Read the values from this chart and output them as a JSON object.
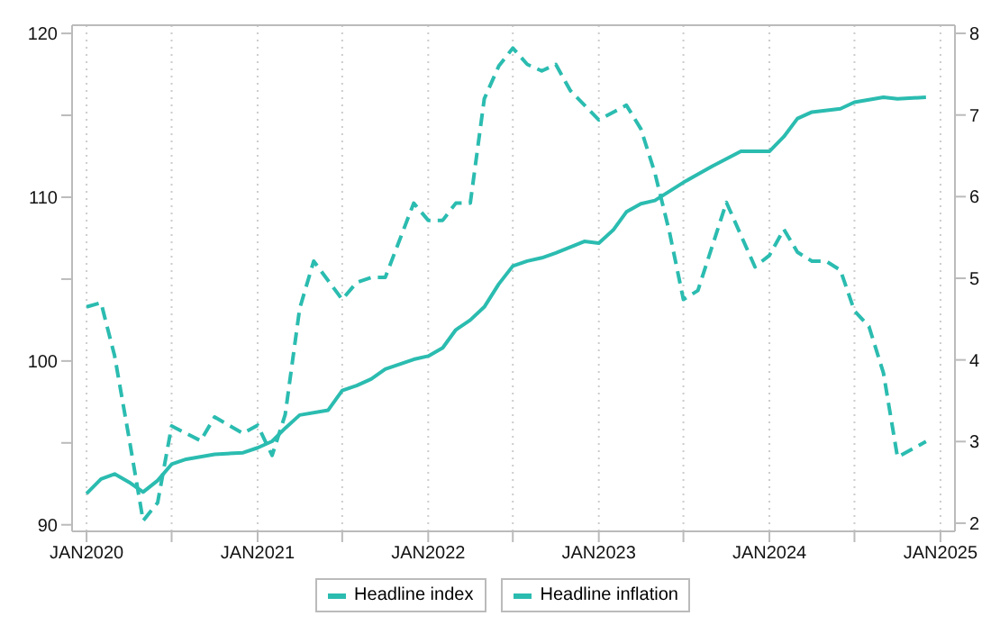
{
  "chart_data": {
    "type": "line",
    "legend": "bottom",
    "grid": true,
    "marker": "none",
    "xlim": [
      "2019-12",
      "2025-02"
    ],
    "xticks": [
      {
        "value": "2020-01",
        "label": "JAN2020"
      },
      {
        "value": "2020-07",
        "label": null
      },
      {
        "value": "2021-01",
        "label": "JAN2021"
      },
      {
        "value": "2021-07",
        "label": null
      },
      {
        "value": "2022-01",
        "label": "JAN2022"
      },
      {
        "value": "2022-07",
        "label": null
      },
      {
        "value": "2023-01",
        "label": "JAN2023"
      },
      {
        "value": "2023-07",
        "label": null
      },
      {
        "value": "2024-01",
        "label": "JAN2024"
      },
      {
        "value": "2024-07",
        "label": null
      },
      {
        "value": "2025-01",
        "label": "JAN2025"
      }
    ],
    "ylim": [
      89.6,
      120.5
    ],
    "yticks": [
      90,
      {
        "value": 95,
        "label": null
      },
      100,
      {
        "value": 105,
        "label": null
      },
      110,
      {
        "value": 115,
        "label": null
      },
      120
    ],
    "y2lim": [
      1.9,
      8.1
    ],
    "y2ticks": [
      2,
      3,
      4,
      5,
      6,
      7,
      8
    ],
    "series": [
      {
        "name": "Headline index",
        "color": "#2bbcb0",
        "line_style": "solid",
        "x": [
          "2020-01",
          "2020-02",
          "2020-03",
          "2020-04",
          "2020-05",
          "2020-06",
          "2020-07",
          "2020-08",
          "2020-10",
          "2020-12",
          "2021-01",
          "2021-02",
          "2021-03",
          "2021-04",
          "2021-06",
          "2021-07",
          "2021-08",
          "2021-09",
          "2021-10",
          "2021-12",
          "2022-01",
          "2022-02",
          "2022-03",
          "2022-04",
          "2022-05",
          "2022-06",
          "2022-07",
          "2022-08",
          "2022-09",
          "2022-10",
          "2022-12",
          "2023-01",
          "2023-02",
          "2023-03",
          "2023-04",
          "2023-05",
          "2023-07",
          "2023-08",
          "2023-09",
          "2023-11",
          "2024-01",
          "2024-02",
          "2024-03",
          "2024-04",
          "2024-06",
          "2024-07",
          "2024-09",
          "2024-10",
          "2024-12"
        ],
        "values": [
          91.9,
          92.8,
          93.1,
          92.6,
          92.0,
          92.7,
          93.7,
          94.0,
          94.3,
          94.4,
          94.7,
          95.1,
          95.9,
          96.7,
          97.0,
          98.2,
          98.5,
          98.9,
          99.5,
          100.1,
          100.3,
          100.8,
          101.9,
          102.5,
          103.3,
          104.7,
          105.8,
          106.1,
          106.3,
          106.6,
          107.3,
          107.2,
          108.0,
          109.1,
          109.6,
          109.8,
          110.9,
          111.4,
          111.9,
          112.8,
          112.8,
          113.7,
          114.8,
          115.2,
          115.4,
          115.8,
          116.1,
          116.0,
          116.1
        ]
      },
      {
        "name": "Headline inflation",
        "color": "#2bbcb0",
        "axis": "y2",
        "line_style": "dashed",
        "x": [
          "2020-01",
          "2020-02",
          "2020-03",
          "2020-04",
          "2020-05",
          "2020-06",
          "2020-07",
          "2020-08",
          "2020-09",
          "2020-10",
          "2020-12",
          "2021-01",
          "2021-02",
          "2021-03",
          "2021-04",
          "2021-05",
          "2021-07",
          "2021-08",
          "2021-09",
          "2021-10",
          "2021-12",
          "2022-01",
          "2022-02",
          "2022-03",
          "2022-04",
          "2022-05",
          "2022-06",
          "2022-07",
          "2022-08",
          "2022-09",
          "2022-10",
          "2022-11",
          "2023-01",
          "2023-03",
          "2023-04",
          "2023-05",
          "2023-06",
          "2023-07",
          "2023-08",
          "2023-10",
          "2023-12",
          "2024-01",
          "2024-02",
          "2024-03",
          "2024-04",
          "2024-05",
          "2024-06",
          "2024-07",
          "2024-08",
          "2024-09",
          "2024-10",
          "2024-12"
        ],
        "values": [
          4.65,
          4.7,
          4.05,
          3.04,
          2.03,
          2.25,
          3.19,
          3.1,
          3.01,
          3.3,
          3.1,
          3.2,
          2.83,
          3.33,
          4.63,
          5.21,
          4.74,
          4.95,
          5.01,
          5.01,
          5.92,
          5.71,
          5.71,
          5.92,
          5.92,
          7.2,
          7.6,
          7.82,
          7.62,
          7.54,
          7.62,
          7.3,
          6.94,
          7.12,
          6.83,
          6.29,
          5.57,
          4.74,
          4.85,
          5.93,
          5.14,
          5.28,
          5.6,
          5.32,
          5.21,
          5.21,
          5.1,
          4.6,
          4.41,
          3.84,
          2.81,
          3.0
        ]
      }
    ]
  }
}
